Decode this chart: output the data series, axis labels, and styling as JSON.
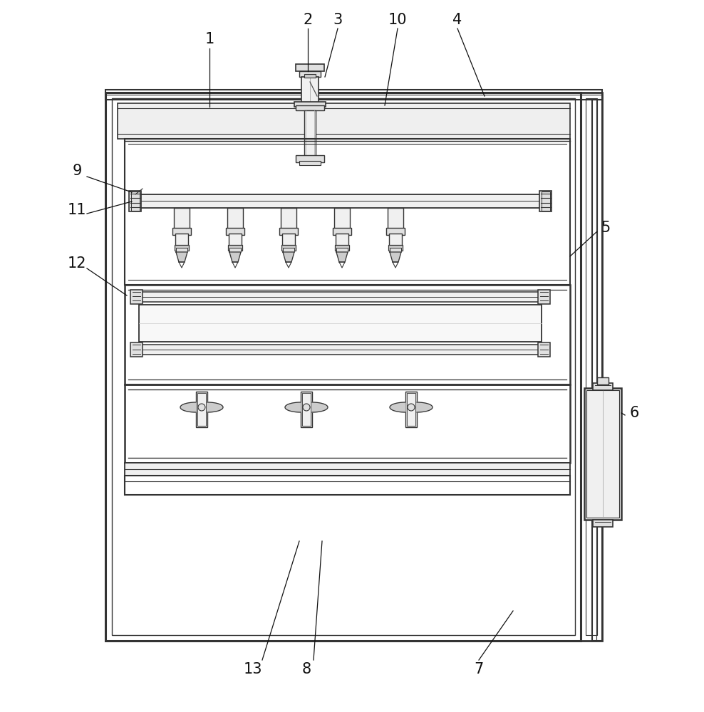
{
  "bg_color": "#ffffff",
  "lc": "#333333",
  "lc2": "#555555",
  "fill_light": "#f0f0f0",
  "fill_med": "#e0e0e0",
  "fill_dark": "#cccccc"
}
